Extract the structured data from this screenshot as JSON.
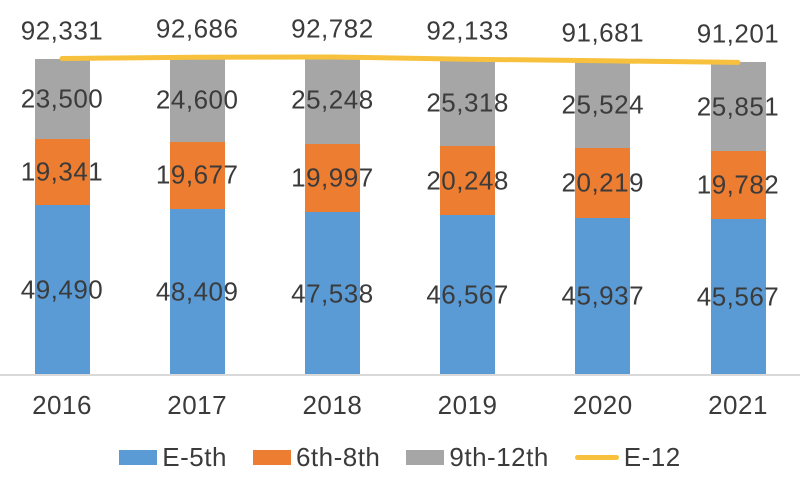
{
  "chart_data": {
    "type": "bar",
    "stacked": true,
    "title": "",
    "xlabel": "",
    "ylabel": "",
    "grid": false,
    "y_axis_visible": false,
    "legend_position": "bottom",
    "label_color": "#3B3B3B",
    "axis_line_color": "#D9D9D9",
    "categories": [
      "2016",
      "2017",
      "2018",
      "2019",
      "2020",
      "2021"
    ],
    "series": [
      {
        "name": "E-5th",
        "color": "#5B9BD5",
        "values": [
          49490,
          48409,
          47538,
          46567,
          45937,
          45567
        ]
      },
      {
        "name": "6th-8th",
        "color": "#ED7D31",
        "values": [
          19341,
          19677,
          19997,
          20248,
          20219,
          19782
        ]
      },
      {
        "name": "9th-12th",
        "color": "#A6A6A6",
        "values": [
          23500,
          24600,
          25248,
          25318,
          25524,
          25851
        ]
      }
    ],
    "line": {
      "name": "E-12",
      "color": "#F7C13D",
      "values": [
        92331,
        92686,
        92782,
        92133,
        91681,
        91201
      ]
    },
    "total_labels": [
      "92,331",
      "92,686",
      "92,782",
      "92,133",
      "91,681",
      "91,201"
    ]
  }
}
